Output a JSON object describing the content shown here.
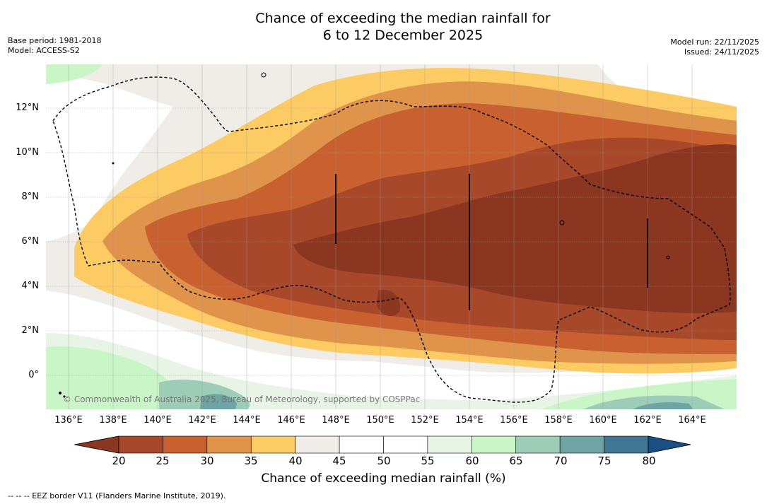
{
  "title": {
    "line1": "Chance of exceeding the median rainfall for",
    "line2": "6 to 12 December 2025"
  },
  "meta_left": {
    "base_period": "Base period: 1981-2018",
    "model": "Model: ACCESS-S2"
  },
  "meta_right": {
    "model_run": "Model run: 22/11/2025",
    "issued": "Issued: 24/11/2025"
  },
  "latitude_labels": [
    "12°N",
    "10°N",
    "8°N",
    "6°N",
    "4°N",
    "2°N",
    "0°"
  ],
  "longitude_labels": [
    "136°E",
    "138°E",
    "140°E",
    "142°E",
    "144°E",
    "146°E",
    "148°E",
    "150°E",
    "152°E",
    "154°E",
    "156°E",
    "158°E",
    "160°E",
    "162°E",
    "164°E"
  ],
  "copyright": "© Commonwealth of Australia 2025, Bureau of Meteorology, supported by COSPPac",
  "colorbar": {
    "ticks": [
      "20",
      "25",
      "30",
      "35",
      "40",
      "45",
      "50",
      "55",
      "60",
      "65",
      "70",
      "75",
      "80"
    ],
    "colors": [
      "#a8482a",
      "#c8602f",
      "#e0934a",
      "#fdcb63",
      "#f0ede8",
      "#ffffff",
      "#ffffff",
      "#e8f4e6",
      "#c9f5c7",
      "#9dcdb7",
      "#6ea5a4",
      "#3e7693"
    ],
    "low_extend_color": "#8b3620",
    "high_extend_color": "#1b4f83",
    "label": "Chance of exceeding median rainfall (%)"
  },
  "footnote": "--  --  -- EEZ border V11 (Flanders Marine Institute, 2019)."
}
